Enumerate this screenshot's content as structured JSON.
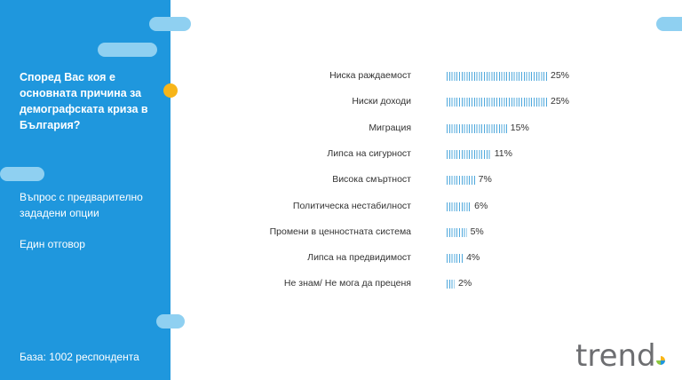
{
  "panel": {
    "question": "Според Вас коя е основната причина за демографската криза в България?",
    "question_type": "Въпрос с предварително зададени опции",
    "answer_type": "Един отговор",
    "base": "База:  1002 респондента"
  },
  "logo": {
    "text": "trend",
    "icon_name": "trend-logo"
  },
  "colors": {
    "panel": "#1f97dd",
    "bar": "#4fa8dc",
    "accent": "#f7b519",
    "pill": "#8fd0f1"
  },
  "chart_data": {
    "type": "bar",
    "orientation": "horizontal",
    "categories": [
      "Ниска раждаемост",
      "Ниски доходи",
      "Миграция",
      "Липса на сигурност",
      "Висока смъртност",
      "Политическа нестабилност",
      "Промени в ценностната система",
      "Липса на предвидимост",
      "Не знам/ Не мога да преценя"
    ],
    "values": [
      25,
      25,
      15,
      11,
      7,
      6,
      5,
      4,
      2
    ],
    "value_labels": [
      "25%",
      "25%",
      "15%",
      "11%",
      "7%",
      "6%",
      "5%",
      "4%",
      "2%"
    ],
    "unit": "%",
    "xlim": [
      0,
      25
    ],
    "grid": false,
    "legend": "none"
  }
}
